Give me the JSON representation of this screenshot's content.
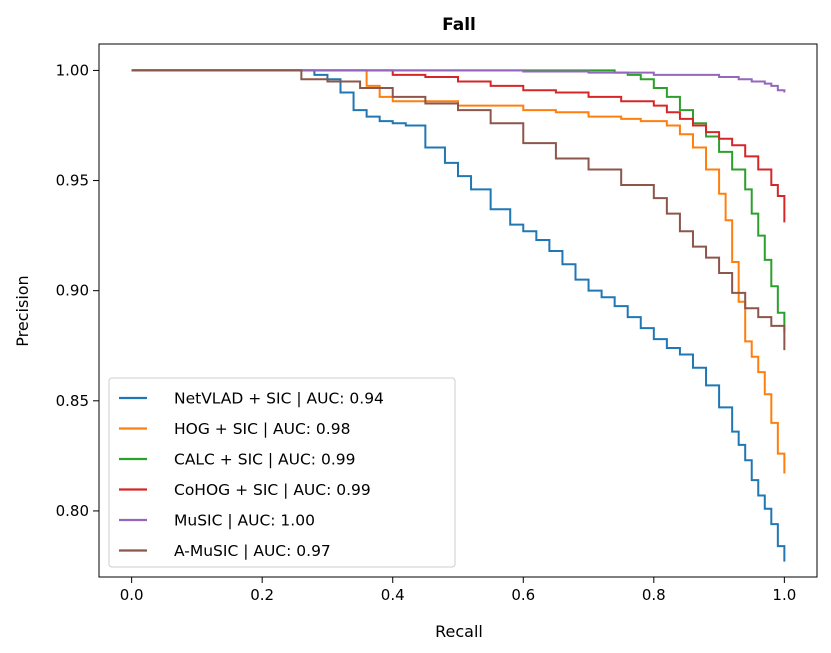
{
  "chart_data": {
    "type": "line",
    "title": "Fall",
    "xlabel": "Recall",
    "ylabel": "Precision",
    "xlim": [
      -0.05,
      1.05
    ],
    "ylim": [
      0.77,
      1.012
    ],
    "xticks": [
      0.0,
      0.2,
      0.4,
      0.6,
      0.8,
      1.0
    ],
    "xtick_labels": [
      "0.0",
      "0.2",
      "0.4",
      "0.6",
      "0.8",
      "1.0"
    ],
    "yticks": [
      0.8,
      0.85,
      0.9,
      0.95,
      1.0
    ],
    "ytick_labels": [
      "0.80",
      "0.85",
      "0.90",
      "0.95",
      "1.00"
    ],
    "grid": false,
    "legend_position": "lower-left",
    "series": [
      {
        "name": "NetVLAD + SIC | AUC: 0.94",
        "color": "#1f77b4",
        "x": [
          0,
          0.27,
          0.28,
          0.3,
          0.32,
          0.34,
          0.36,
          0.38,
          0.4,
          0.42,
          0.45,
          0.48,
          0.5,
          0.52,
          0.55,
          0.58,
          0.6,
          0.62,
          0.64,
          0.66,
          0.68,
          0.7,
          0.72,
          0.74,
          0.76,
          0.78,
          0.8,
          0.82,
          0.84,
          0.86,
          0.88,
          0.9,
          0.92,
          0.93,
          0.94,
          0.95,
          0.96,
          0.97,
          0.98,
          0.99,
          1.0
        ],
        "y": [
          1.0,
          1.0,
          0.998,
          0.996,
          0.99,
          0.982,
          0.979,
          0.977,
          0.976,
          0.975,
          0.965,
          0.958,
          0.952,
          0.946,
          0.937,
          0.93,
          0.927,
          0.923,
          0.918,
          0.912,
          0.905,
          0.9,
          0.897,
          0.893,
          0.888,
          0.883,
          0.878,
          0.874,
          0.871,
          0.865,
          0.857,
          0.847,
          0.836,
          0.83,
          0.823,
          0.814,
          0.807,
          0.801,
          0.794,
          0.784,
          0.777
        ]
      },
      {
        "name": "HOG + SIC | AUC: 0.98",
        "color": "#ff7f0e",
        "x": [
          0,
          0.35,
          0.36,
          0.38,
          0.4,
          0.45,
          0.5,
          0.55,
          0.6,
          0.65,
          0.7,
          0.75,
          0.78,
          0.8,
          0.82,
          0.84,
          0.86,
          0.88,
          0.9,
          0.91,
          0.92,
          0.93,
          0.94,
          0.95,
          0.96,
          0.97,
          0.98,
          0.99,
          1.0
        ],
        "y": [
          1.0,
          1.0,
          0.993,
          0.988,
          0.986,
          0.986,
          0.984,
          0.984,
          0.982,
          0.981,
          0.979,
          0.978,
          0.977,
          0.977,
          0.975,
          0.971,
          0.965,
          0.955,
          0.944,
          0.932,
          0.913,
          0.895,
          0.877,
          0.87,
          0.863,
          0.853,
          0.84,
          0.826,
          0.817
        ]
      },
      {
        "name": "CALC + SIC | AUC: 0.99",
        "color": "#2ca02c",
        "x": [
          0,
          0.6,
          0.64,
          0.68,
          0.72,
          0.74,
          0.76,
          0.78,
          0.8,
          0.82,
          0.84,
          0.86,
          0.88,
          0.9,
          0.92,
          0.94,
          0.95,
          0.96,
          0.97,
          0.98,
          0.99,
          1.0
        ],
        "y": [
          1.0,
          1.0,
          1.0,
          1.0,
          1.0,
          0.999,
          0.998,
          0.996,
          0.992,
          0.988,
          0.982,
          0.976,
          0.97,
          0.963,
          0.955,
          0.946,
          0.935,
          0.925,
          0.914,
          0.902,
          0.89,
          0.881
        ]
      },
      {
        "name": "CoHOG + SIC | AUC: 0.99",
        "color": "#d62728",
        "x": [
          0,
          0.38,
          0.4,
          0.45,
          0.5,
          0.55,
          0.6,
          0.65,
          0.7,
          0.75,
          0.8,
          0.82,
          0.84,
          0.86,
          0.88,
          0.9,
          0.92,
          0.94,
          0.96,
          0.98,
          0.99,
          1.0
        ],
        "y": [
          1.0,
          1.0,
          0.998,
          0.997,
          0.995,
          0.993,
          0.991,
          0.99,
          0.988,
          0.986,
          0.984,
          0.981,
          0.978,
          0.975,
          0.972,
          0.969,
          0.966,
          0.961,
          0.955,
          0.948,
          0.943,
          0.931
        ]
      },
      {
        "name": "MuSIC | AUC: 1.00",
        "color": "#9467bd",
        "x": [
          0,
          0.3,
          0.4,
          0.5,
          0.6,
          0.7,
          0.8,
          0.85,
          0.9,
          0.93,
          0.95,
          0.97,
          0.98,
          0.99,
          1.0
        ],
        "y": [
          1.0,
          1.0,
          1.0,
          1.0,
          0.9995,
          0.999,
          0.998,
          0.998,
          0.997,
          0.996,
          0.995,
          0.994,
          0.993,
          0.991,
          0.99
        ]
      },
      {
        "name": "A-MuSIC | AUC: 0.97",
        "color": "#8c564b",
        "x": [
          0,
          0.25,
          0.26,
          0.3,
          0.35,
          0.4,
          0.45,
          0.5,
          0.55,
          0.6,
          0.65,
          0.7,
          0.75,
          0.8,
          0.82,
          0.84,
          0.86,
          0.88,
          0.9,
          0.92,
          0.94,
          0.96,
          0.98,
          1.0
        ],
        "y": [
          1.0,
          1.0,
          0.996,
          0.995,
          0.992,
          0.988,
          0.985,
          0.982,
          0.976,
          0.967,
          0.96,
          0.955,
          0.948,
          0.942,
          0.935,
          0.927,
          0.92,
          0.915,
          0.908,
          0.899,
          0.892,
          0.888,
          0.884,
          0.873
        ]
      }
    ]
  }
}
